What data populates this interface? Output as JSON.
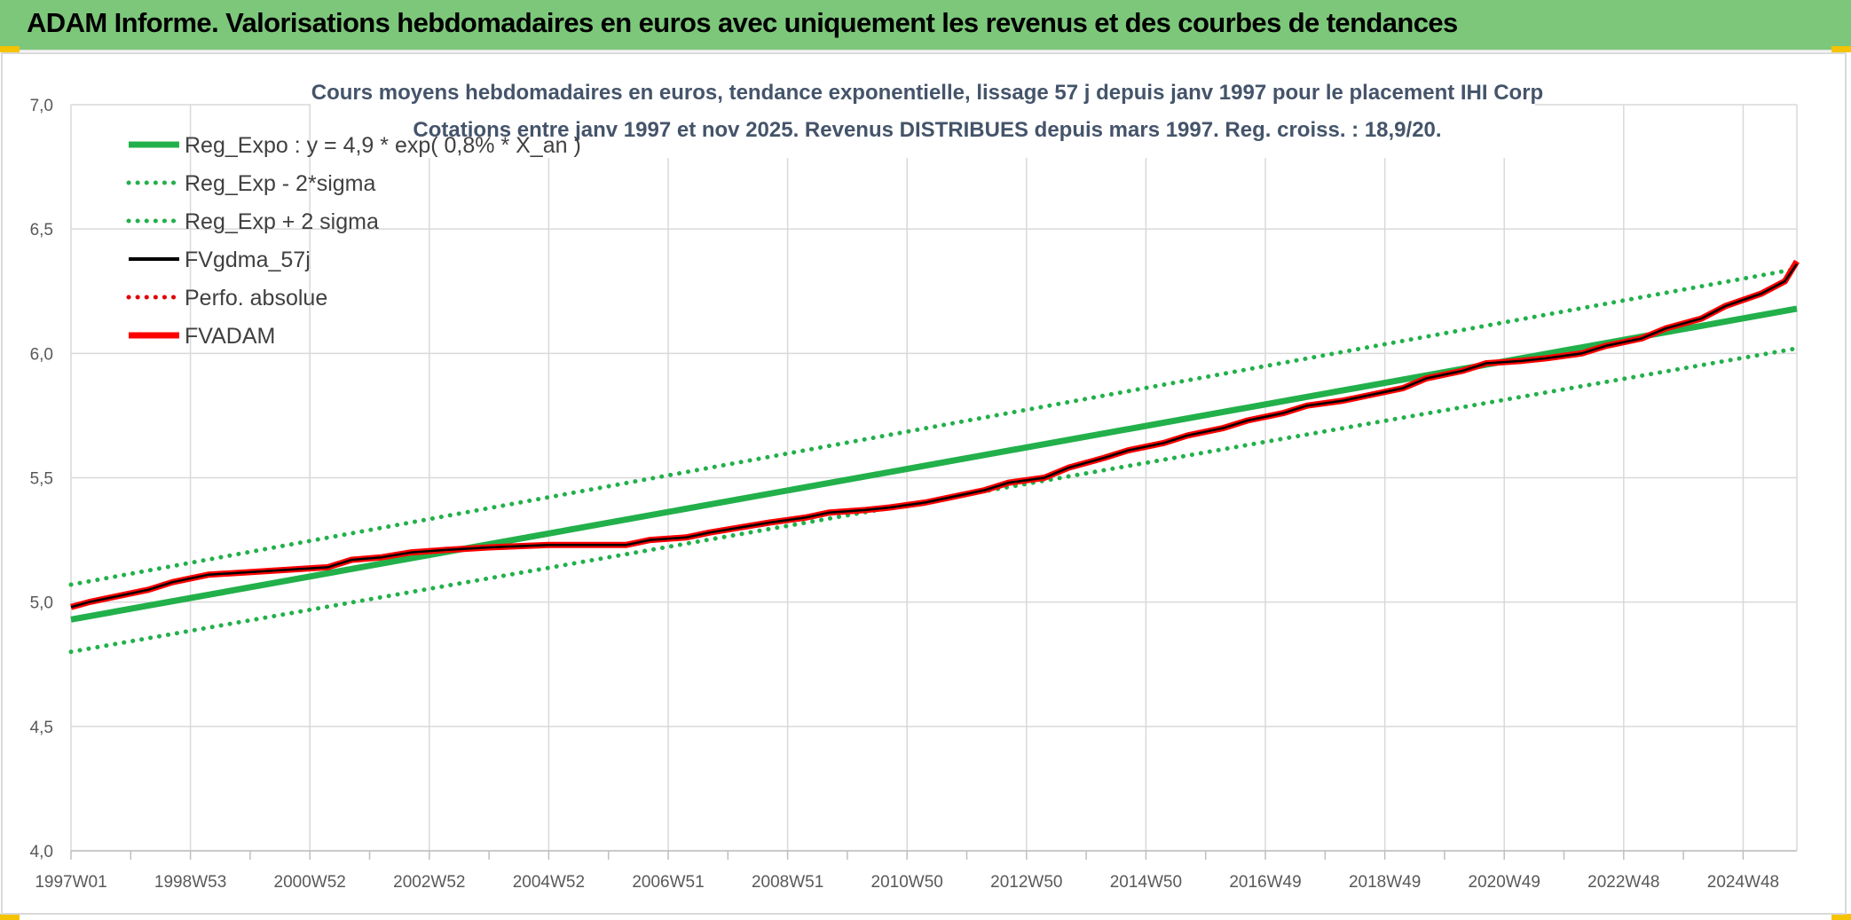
{
  "page": {
    "title": "ADAM Informe. Valorisations hebdomadaires en euros avec uniquement les revenus et des courbes de tendances"
  },
  "colors": {
    "title_bar": "#7dc77b",
    "corner_accent": "#f5c300",
    "regression": "#22b04b",
    "fvgdma": "#000000",
    "perfo": "#e00000",
    "fvadam": "#ff0000",
    "grid": "#d9d9d9"
  },
  "chart_data": {
    "type": "line",
    "title_line1": "Cours moyens hebdomadaires en euros, tendance exponentielle, lissage 57 j depuis janv 1997 pour le placement IHI Corp",
    "title_line2": "Cotations entre janv 1997 et nov 2025. Revenus DISTRIBUES depuis mars 1997. Reg. croiss. : 18,9/20.",
    "xlim": [
      1997.0,
      2025.9
    ],
    "ylim": [
      4.0,
      7.0
    ],
    "y_ticks": [
      "4,0",
      "4,5",
      "5,0",
      "5,5",
      "6,0",
      "6,5",
      "7,0"
    ],
    "y_tick_values": [
      4.0,
      4.5,
      5.0,
      5.5,
      6.0,
      6.5,
      7.0
    ],
    "x_tick_labels": [
      "1997W01",
      "1998W53",
      "2000W52",
      "2002W52",
      "2004W52",
      "2006W51",
      "2008W51",
      "2010W50",
      "2012W50",
      "2014W50",
      "2016W49",
      "2018W49",
      "2020W49",
      "2022W48",
      "2024W48"
    ],
    "x_tick_values": [
      1997.0,
      1999.0,
      2001.0,
      2003.0,
      2005.0,
      2007.0,
      2009.0,
      2011.0,
      2013.0,
      2015.0,
      2017.0,
      2019.0,
      2021.0,
      2023.0,
      2025.0
    ],
    "grid": true,
    "legend_position": "top-left",
    "legend": [
      {
        "label": "Reg_Expo : y = 4,9 * exp( 0,8% *  X_an )",
        "color": "#22b04b",
        "style": "solid-thick"
      },
      {
        "label": "Reg_Exp - 2*sigma",
        "color": "#22b04b",
        "style": "dotted"
      },
      {
        "label": "Reg_Exp + 2 sigma",
        "color": "#22b04b",
        "style": "dotted"
      },
      {
        "label": "FVgdma_57j",
        "color": "#000000",
        "style": "solid"
      },
      {
        "label": "Perfo. absolue",
        "color": "#e00000",
        "style": "dotted"
      },
      {
        "label": "FVADAM",
        "color": "#ff0000",
        "style": "solid-thick"
      }
    ],
    "series": [
      {
        "name": "Reg_Expo : y = 4,9 * exp( 0,8% *  X_an )",
        "x": [
          1997.0,
          2025.9
        ],
        "values": [
          4.93,
          6.18
        ]
      },
      {
        "name": "Reg_Exp - 2*sigma",
        "x": [
          1997.0,
          2025.9
        ],
        "values": [
          4.8,
          6.02
        ]
      },
      {
        "name": "Reg_Exp + 2 sigma",
        "x": [
          1997.0,
          2025.9
        ],
        "values": [
          5.07,
          6.34
        ]
      },
      {
        "name": "FVADAM",
        "x": [
          1997.0,
          1997.3,
          1997.7,
          1998.3,
          1998.7,
          1999.3,
          2001.3,
          2001.7,
          2002.2,
          2002.7,
          2003.3,
          2004.0,
          2005.0,
          2006.3,
          2006.7,
          2007.3,
          2007.7,
          2008.2,
          2008.7,
          2009.3,
          2009.7,
          2010.3,
          2010.7,
          2011.3,
          2011.7,
          2012.3,
          2012.7,
          2013.3,
          2013.7,
          2014.3,
          2014.7,
          2015.3,
          2015.7,
          2016.3,
          2016.7,
          2017.3,
          2017.7,
          2018.3,
          2018.7,
          2019.3,
          2019.7,
          2020.3,
          2020.7,
          2021.3,
          2021.7,
          2022.3,
          2022.7,
          2023.3,
          2023.7,
          2024.3,
          2024.7,
          2025.3,
          2025.7,
          2025.9
        ],
        "values": [
          4.98,
          5.0,
          5.02,
          5.05,
          5.08,
          5.11,
          5.14,
          5.17,
          5.18,
          5.2,
          5.21,
          5.22,
          5.23,
          5.23,
          5.25,
          5.26,
          5.28,
          5.3,
          5.32,
          5.34,
          5.36,
          5.37,
          5.38,
          5.4,
          5.42,
          5.45,
          5.48,
          5.5,
          5.54,
          5.58,
          5.61,
          5.64,
          5.67,
          5.7,
          5.73,
          5.76,
          5.79,
          5.81,
          5.83,
          5.86,
          5.9,
          5.93,
          5.96,
          5.97,
          5.98,
          6.0,
          6.03,
          6.06,
          6.1,
          6.14,
          6.19,
          6.24,
          6.29,
          6.37
        ]
      },
      {
        "name": "FVgdma_57j",
        "x": [
          1997.0,
          1997.3,
          1997.7,
          1998.3,
          1998.7,
          1999.3,
          2001.3,
          2001.7,
          2002.2,
          2002.7,
          2003.3,
          2004.0,
          2005.0,
          2006.3,
          2006.7,
          2007.3,
          2007.7,
          2008.2,
          2008.7,
          2009.3,
          2009.7,
          2010.3,
          2010.7,
          2011.3,
          2011.7,
          2012.3,
          2012.7,
          2013.3,
          2013.7,
          2014.3,
          2014.7,
          2015.3,
          2015.7,
          2016.3,
          2016.7,
          2017.3,
          2017.7,
          2018.3,
          2018.7,
          2019.3,
          2019.7,
          2020.3,
          2020.7,
          2021.3,
          2021.7,
          2022.3,
          2022.7,
          2023.3,
          2023.7,
          2024.3,
          2024.7,
          2025.3,
          2025.7,
          2025.9
        ],
        "values": [
          4.98,
          5.0,
          5.02,
          5.05,
          5.08,
          5.11,
          5.14,
          5.17,
          5.18,
          5.2,
          5.21,
          5.22,
          5.23,
          5.23,
          5.25,
          5.26,
          5.28,
          5.3,
          5.32,
          5.34,
          5.36,
          5.37,
          5.38,
          5.4,
          5.42,
          5.45,
          5.48,
          5.5,
          5.54,
          5.58,
          5.61,
          5.64,
          5.67,
          5.7,
          5.73,
          5.76,
          5.79,
          5.81,
          5.83,
          5.86,
          5.9,
          5.93,
          5.96,
          5.97,
          5.98,
          6.0,
          6.03,
          6.06,
          6.1,
          6.14,
          6.19,
          6.24,
          6.29,
          6.36
        ]
      }
    ]
  }
}
